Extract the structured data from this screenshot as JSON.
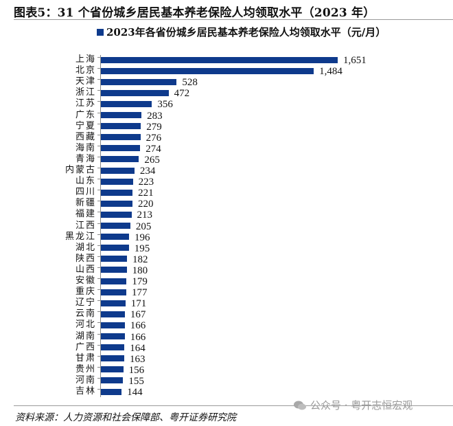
{
  "figure": {
    "title": "图表5：31 个省份城乡居民基本养老保险人均领取水平（2023 年）",
    "legend_label": "2023年各省份城乡居民基本养老保险人均领取水平（元/月）",
    "source": "资料来源：人力资源和社会保障部、粤开证券研究院",
    "watermark": "公众号 · 粤开志恒宏观",
    "bar_color": "#0e3a8c"
  },
  "chart_data": {
    "type": "bar",
    "orientation": "horizontal",
    "title": "图表5：31 个省份城乡居民基本养老保险人均领取水平（2023 年）",
    "xlabel": "",
    "ylabel": "",
    "unit": "元/月",
    "legend": [
      "2023年各省份城乡居民基本养老保险人均领取水平（元/月）"
    ],
    "legend_position": "top",
    "grid": false,
    "categories": [
      "上海",
      "北京",
      "天津",
      "浙江",
      "江苏",
      "广东",
      "宁夏",
      "西藏",
      "海南",
      "青海",
      "内蒙古",
      "山东",
      "四川",
      "新疆",
      "福建",
      "江西",
      "黑龙江",
      "湖北",
      "陕西",
      "山西",
      "安徽",
      "重庆",
      "辽宁",
      "云南",
      "河北",
      "湖南",
      "广西",
      "甘肃",
      "贵州",
      "河南",
      "吉林"
    ],
    "values": [
      1651,
      1484,
      528,
      472,
      356,
      283,
      279,
      276,
      274,
      265,
      234,
      223,
      221,
      220,
      213,
      205,
      196,
      195,
      182,
      180,
      179,
      177,
      171,
      167,
      166,
      166,
      164,
      163,
      156,
      155,
      144
    ],
    "value_labels": [
      "1,651",
      "1,484",
      "528",
      "472",
      "356",
      "283",
      "279",
      "276",
      "274",
      "265",
      "234",
      "223",
      "221",
      "220",
      "213",
      "205",
      "196",
      "195",
      "182",
      "180",
      "179",
      "177",
      "171",
      "167",
      "166",
      "166",
      "164",
      "163",
      "156",
      "155",
      "144"
    ],
    "series": [
      {
        "name": "2023年各省份城乡居民基本养老保险人均领取水平（元/月）",
        "values": [
          1651,
          1484,
          528,
          472,
          356,
          283,
          279,
          276,
          274,
          265,
          234,
          223,
          221,
          220,
          213,
          205,
          196,
          195,
          182,
          180,
          179,
          177,
          171,
          167,
          166,
          166,
          164,
          163,
          156,
          155,
          144
        ]
      }
    ],
    "xlim": [
      0,
      1700
    ]
  }
}
